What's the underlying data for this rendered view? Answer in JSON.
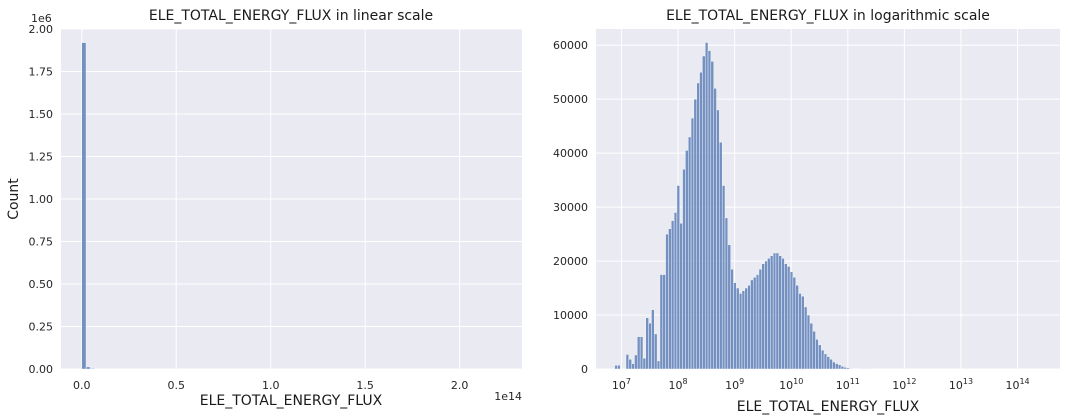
{
  "colors": {
    "panel_bg": "#eaeaf2",
    "grid": "#ffffff",
    "bar_fill": "#4c72b0",
    "bar_edge": "#ffffff"
  },
  "chart_data": [
    {
      "type": "bar",
      "title": "ELE_TOTAL_ENERGY_FLUX in linear scale",
      "xlabel": "ELE_TOTAL_ENERGY_FLUX",
      "ylabel": "Count",
      "x_offset_label": "1e14",
      "y_offset_label": "1e6",
      "grid": true,
      "xlim": [
        -0.11,
        2.33
      ],
      "ylim": [
        0,
        2.0
      ],
      "x_ticks": [
        0.0,
        0.5,
        1.0,
        1.5,
        2.0
      ],
      "x_tick_labels": [
        "0.0",
        "0.5",
        "1.0",
        "1.5",
        "2.0"
      ],
      "y_ticks": [
        0.0,
        0.25,
        0.5,
        0.75,
        1.0,
        1.25,
        1.5,
        1.75,
        2.0
      ],
      "y_tick_labels": [
        "0.00",
        "0.25",
        "0.50",
        "0.75",
        "1.00",
        "1.25",
        "1.50",
        "1.75",
        "2.00"
      ],
      "bin_width": 0.0225,
      "bin_starts": [
        0.0,
        0.0225,
        0.045
      ],
      "values": [
        1.92,
        0.012,
        0.004
      ]
    },
    {
      "type": "bar",
      "title": "ELE_TOTAL_ENERGY_FLUX in logarithmic scale",
      "xlabel": "ELE_TOTAL_ENERGY_FLUX",
      "ylabel": "",
      "x_scale": "log",
      "grid": true,
      "xlim": [
        6.55,
        14.75
      ],
      "ylim": [
        0,
        63000
      ],
      "x_ticks": [
        7,
        8,
        9,
        10,
        11,
        12,
        13,
        14
      ],
      "x_tick_labels": [
        {
          "base": "10",
          "exp": "7"
        },
        {
          "base": "10",
          "exp": "8"
        },
        {
          "base": "10",
          "exp": "9"
        },
        {
          "base": "10",
          "exp": "10"
        },
        {
          "base": "10",
          "exp": "11"
        },
        {
          "base": "10",
          "exp": "12"
        },
        {
          "base": "10",
          "exp": "13"
        },
        {
          "base": "10",
          "exp": "14"
        }
      ],
      "y_ticks": [
        0,
        10000,
        20000,
        30000,
        40000,
        50000,
        60000
      ],
      "y_tick_labels": [
        "0",
        "10000",
        "20000",
        "30000",
        "40000",
        "50000",
        "60000"
      ],
      "log10_bin_width": 0.0496,
      "log10_bin_starts": [
        6.88,
        6.93,
        6.98,
        7.03,
        7.08,
        7.13,
        7.18,
        7.23,
        7.28,
        7.33,
        7.38,
        7.43,
        7.48,
        7.53,
        7.58,
        7.63,
        7.68,
        7.73,
        7.78,
        7.83,
        7.88,
        7.93,
        7.98,
        8.03,
        8.08,
        8.13,
        8.18,
        8.23,
        8.28,
        8.33,
        8.38,
        8.43,
        8.48,
        8.53,
        8.58,
        8.63,
        8.68,
        8.73,
        8.78,
        8.83,
        8.88,
        8.93,
        8.98,
        9.03,
        9.08,
        9.13,
        9.18,
        9.23,
        9.28,
        9.33,
        9.38,
        9.43,
        9.48,
        9.53,
        9.58,
        9.63,
        9.68,
        9.73,
        9.78,
        9.83,
        9.88,
        9.93,
        9.98,
        10.03,
        10.08,
        10.13,
        10.18,
        10.23,
        10.28,
        10.33,
        10.38,
        10.43,
        10.48,
        10.53,
        10.58,
        10.63,
        10.68,
        10.73,
        10.78,
        10.83,
        10.88,
        10.93,
        10.98,
        11.03,
        11.08,
        11.13,
        11.18,
        11.23,
        11.28,
        11.33,
        11.38,
        11.43,
        11.48,
        11.53,
        11.58,
        11.63,
        11.68,
        11.73,
        11.78,
        11.83,
        11.88,
        11.93,
        11.98,
        12.03,
        12.08,
        12.13,
        12.18,
        12.23,
        12.28,
        12.33,
        12.38,
        12.43,
        12.48,
        12.53,
        12.58,
        12.63,
        12.68,
        12.73,
        12.78,
        12.83,
        12.88,
        12.93,
        12.98,
        13.03,
        13.08,
        13.13,
        13.18,
        13.23,
        13.28,
        13.33,
        13.38,
        13.43,
        13.48,
        13.53,
        13.58,
        13.63,
        13.68,
        13.73,
        13.78,
        13.83,
        13.88,
        13.93,
        13.98,
        14.03,
        14.08,
        14.13,
        14.18,
        14.23,
        14.28,
        14.33
      ],
      "values": [
        700,
        700,
        0,
        0,
        2700,
        1800,
        1000,
        2600,
        6000,
        6000,
        2000,
        9500,
        8500,
        11000,
        6500,
        1500,
        17500,
        17500,
        25000,
        26000,
        27500,
        29000,
        34000,
        27000,
        37000,
        40500,
        43000,
        46500,
        50000,
        53000,
        55000,
        58000,
        60500,
        59000,
        57000,
        52000,
        48000,
        42000,
        34000,
        28000,
        23000,
        18500,
        16000,
        15000,
        14000,
        14500,
        15000,
        15500,
        16500,
        17000,
        17500,
        18500,
        19500,
        20000,
        20500,
        21000,
        21500,
        21500,
        21000,
        20500,
        19500,
        19000,
        18000,
        17000,
        15500,
        14000,
        13500,
        11500,
        10000,
        8500,
        7000,
        5500,
        4500,
        3500,
        2800,
        2300,
        1800,
        1300,
        1000,
        800,
        500,
        300,
        200,
        100,
        80,
        60,
        40,
        30,
        20,
        10,
        5,
        0,
        0,
        0,
        0,
        0,
        0,
        0,
        0,
        0,
        0,
        0,
        0,
        0,
        0,
        0,
        0,
        0,
        0,
        0,
        0,
        0,
        0,
        0,
        0,
        0,
        0,
        0,
        0,
        0,
        0,
        0,
        0,
        0,
        0,
        0,
        0,
        0,
        0,
        0,
        0,
        0,
        0,
        0,
        0,
        0,
        0,
        0,
        0,
        0,
        0,
        0,
        0,
        0,
        0,
        0,
        0,
        0,
        0
      ]
    }
  ]
}
